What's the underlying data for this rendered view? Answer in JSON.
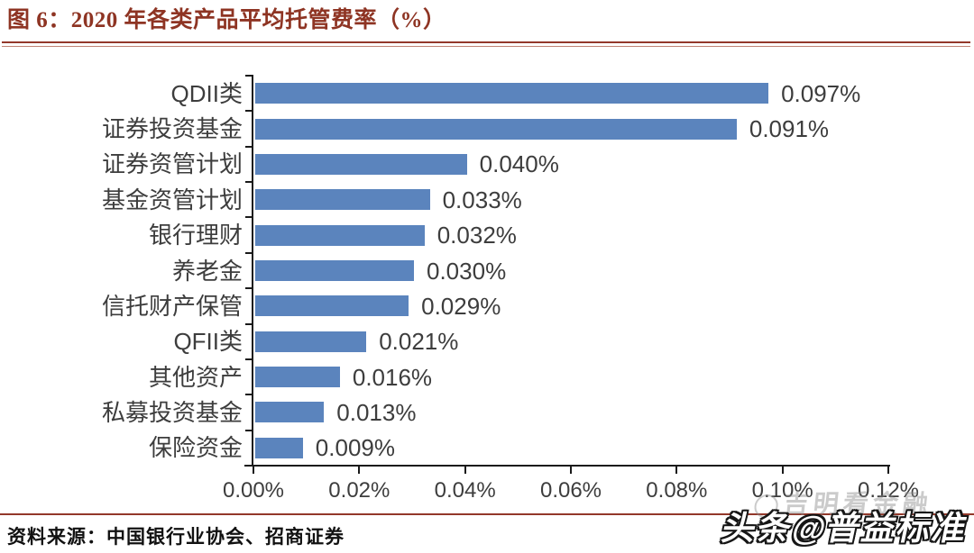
{
  "figure": {
    "title": "图 6：2020 年各类产品平均托管费率（%）",
    "source": "资料来源：中国银行业协会、招商证券"
  },
  "watermarks": {
    "back": "吉明看金融",
    "front": "头条@普益标准"
  },
  "colors": {
    "accent_red": "#93382a",
    "bar_blue": "#5b84bd",
    "axis_black": "#1a1a1a",
    "label_gray": "#3d3d3d"
  },
  "chart_data": {
    "type": "bar",
    "orientation": "horizontal",
    "title": "2020 年各类产品平均托管费率（%）",
    "categories": [
      "QDII类",
      "证券投资基金",
      "证券资管计划",
      "基金资管计划",
      "银行理财",
      "养老金",
      "信托财产保管",
      "QFII类",
      "其他资产",
      "私募投资基金",
      "保险资金"
    ],
    "values": [
      0.097,
      0.091,
      0.04,
      0.033,
      0.032,
      0.03,
      0.029,
      0.021,
      0.016,
      0.013,
      0.009
    ],
    "value_labels": [
      "0.097%",
      "0.091%",
      "0.040%",
      "0.033%",
      "0.032%",
      "0.030%",
      "0.029%",
      "0.021%",
      "0.016%",
      "0.013%",
      "0.009%"
    ],
    "xlabel": "",
    "ylabel": "",
    "xlim": [
      0,
      0.12
    ],
    "xtick_labels": [
      "0.00%",
      "0.02%",
      "0.04%",
      "0.06%",
      "0.08%",
      "0.10%",
      "0.12%"
    ],
    "grid": false,
    "legend": "none",
    "bar_color": "#5b84bd"
  }
}
